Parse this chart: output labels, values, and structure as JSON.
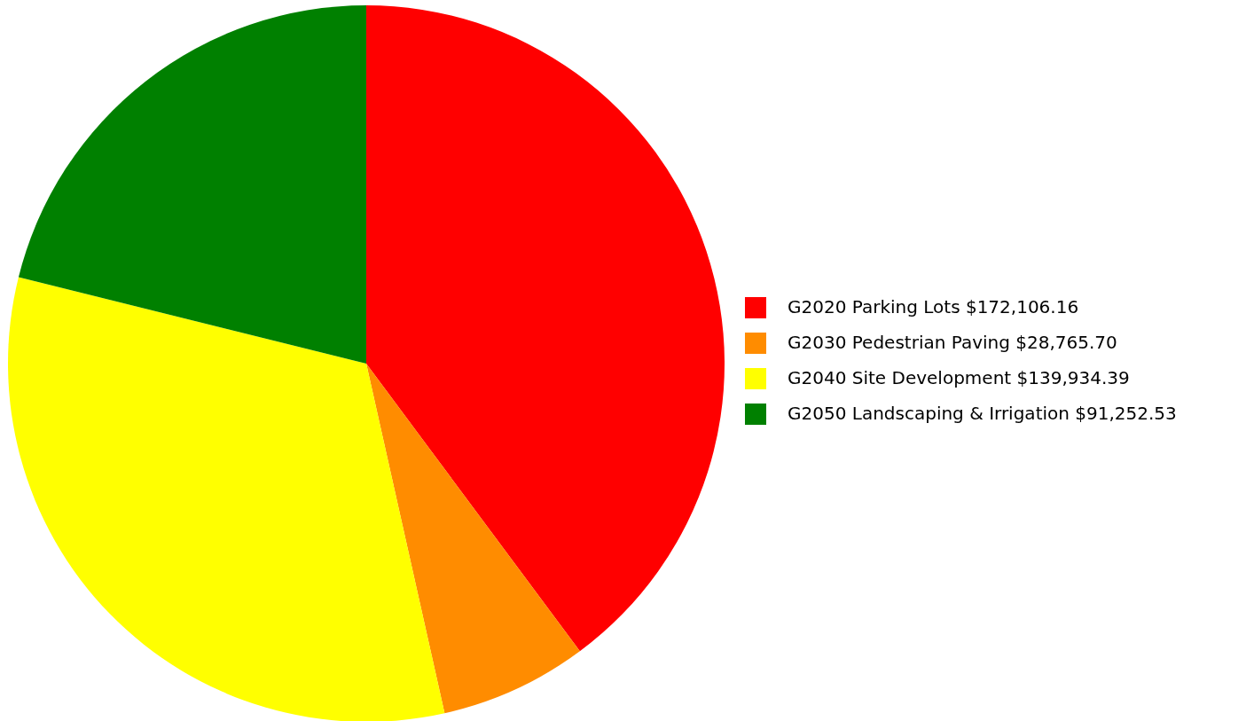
{
  "chart_data": {
    "type": "pie",
    "categories": [
      "G2020 Parking Lots $172,106.16",
      "G2030 Pedestrian Paving $28,765.70",
      "G2040 Site Development $139,934.39",
      "G2050 Landscaping & Irrigation $91,252.53"
    ],
    "values": [
      172106.16,
      28765.7,
      139934.39,
      91252.53
    ],
    "colors": [
      "#ff0000",
      "#ff8c00",
      "#ffff00",
      "#008000"
    ],
    "legend": "right"
  }
}
